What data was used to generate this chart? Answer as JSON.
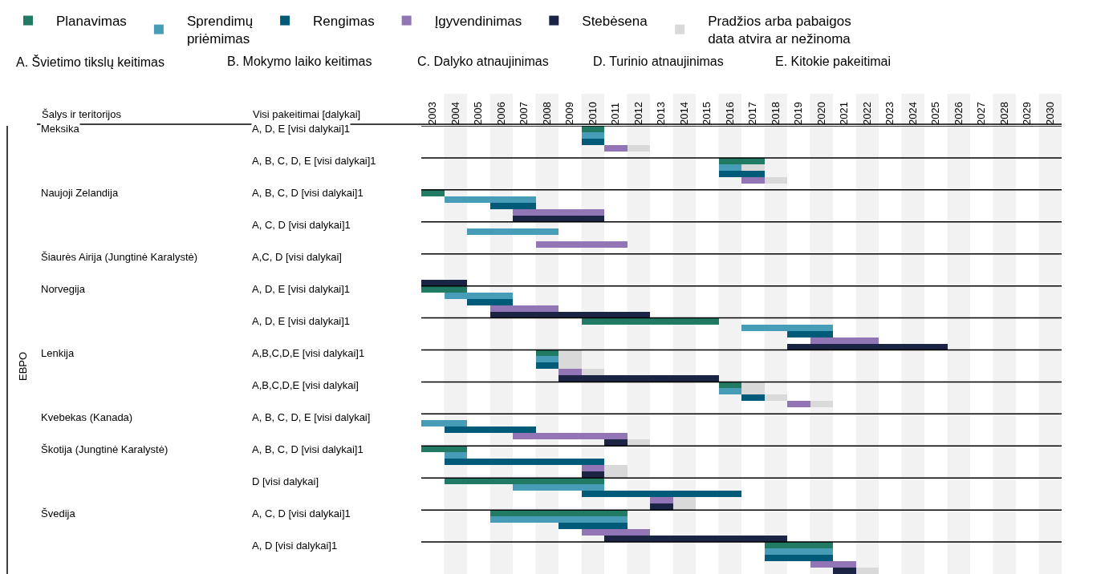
{
  "chart_data": {
    "type": "bar",
    "orientation": "horizontal",
    "legend": "top",
    "grid": false,
    "annotations": [
      "A. Švietimo tikslų keitimas",
      "B. Mokymo laiko keitimas",
      "C. Dalyko atnaujinimas",
      "D. Turinio atnaujinimas",
      "E. Kitokie pakeitimai",
      "Šalys ir teritorijos",
      "Visi pakeitimai [dalykai]",
      "EBPO"
    ],
    "xlim": [
      2003,
      2031
    ],
    "xticks": [
      {
        "value": 2003.5,
        "label": "2003"
      },
      {
        "value": 2004.5,
        "label": "2004"
      },
      {
        "value": 2005.5,
        "label": "2005"
      },
      {
        "value": 2006.5,
        "label": "2006"
      },
      {
        "value": 2007.5,
        "label": "2007"
      },
      {
        "value": 2008.5,
        "label": "2008"
      },
      {
        "value": 2009.5,
        "label": "2009"
      },
      {
        "value": 2010.5,
        "label": "2010"
      },
      {
        "value": 2011.5,
        "label": "2011"
      },
      {
        "value": 2012.5,
        "label": "2012"
      },
      {
        "value": 2013.5,
        "label": "2013"
      },
      {
        "value": 2014.5,
        "label": "2014"
      },
      {
        "value": 2015.5,
        "label": "2015"
      },
      {
        "value": 2016.5,
        "label": "2016"
      },
      {
        "value": 2017.5,
        "label": "2017"
      },
      {
        "value": 2018.5,
        "label": "2018"
      },
      {
        "value": 2019.5,
        "label": "2019"
      },
      {
        "value": 2020.5,
        "label": "2020"
      },
      {
        "value": 2021.5,
        "label": "2021"
      },
      {
        "value": 2022.5,
        "label": "2022"
      },
      {
        "value": 2023.5,
        "label": "2023"
      },
      {
        "value": 2024.5,
        "label": "2024"
      },
      {
        "value": 2025.5,
        "label": "2025"
      },
      {
        "value": 2026.5,
        "label": "2026"
      },
      {
        "value": 2027.5,
        "label": "2027"
      },
      {
        "value": 2028.5,
        "label": "2028"
      },
      {
        "value": 2029.5,
        "label": "2029"
      },
      {
        "value": 2030.5,
        "label": "2030"
      }
    ],
    "bands": [
      {
        "axis": "x",
        "from": 2004,
        "to": 2005,
        "color": "#f2f2f2"
      },
      {
        "axis": "x",
        "from": 2006,
        "to": 2007,
        "color": "#f2f2f2"
      },
      {
        "axis": "x",
        "from": 2008,
        "to": 2009,
        "color": "#f2f2f2"
      },
      {
        "axis": "x",
        "from": 2010,
        "to": 2011,
        "color": "#f2f2f2"
      },
      {
        "axis": "x",
        "from": 2012,
        "to": 2013,
        "color": "#f2f2f2"
      },
      {
        "axis": "x",
        "from": 2014,
        "to": 2015,
        "color": "#f2f2f2"
      },
      {
        "axis": "x",
        "from": 2016,
        "to": 2017,
        "color": "#f2f2f2"
      },
      {
        "axis": "x",
        "from": 2018,
        "to": 2019,
        "color": "#f2f2f2"
      },
      {
        "axis": "x",
        "from": 2020,
        "to": 2021,
        "color": "#f2f2f2"
      },
      {
        "axis": "x",
        "from": 2022,
        "to": 2023,
        "color": "#f2f2f2"
      },
      {
        "axis": "x",
        "from": 2024,
        "to": 2025,
        "color": "#f2f2f2"
      },
      {
        "axis": "x",
        "from": 2026,
        "to": 2027,
        "color": "#f2f2f2"
      },
      {
        "axis": "x",
        "from": 2028,
        "to": 2029,
        "color": "#f2f2f2"
      },
      {
        "axis": "x",
        "from": 2030,
        "to": 2031,
        "color": "#f2f2f2"
      }
    ],
    "categories": [
      "A, D, E [visi dalykai]1",
      null,
      null,
      null,
      null,
      "A, B, C, D, E [visi dalykai]1",
      null,
      null,
      null,
      null,
      "A, B, C, D [visi dalykai]1",
      null,
      null,
      null,
      null,
      "A, C, D [visi dalykai]1",
      null,
      null,
      null,
      null,
      "A,C, D [visi dalykai]",
      null,
      null,
      null,
      null,
      "A, D, E [visi dalykai]1",
      null,
      null,
      null,
      null,
      "A, D, E [visi dalykai]1",
      null,
      null,
      null,
      null,
      "A,B,C,D,E [visi dalykai]1",
      null,
      null,
      null,
      null,
      "A,B,C,D,E [visi dalykai]",
      null,
      null,
      null,
      null,
      "A, B, C, D, E [visi dalykai]",
      null,
      null,
      null,
      null,
      "A, B, C, D [visi dalykai]1",
      null,
      null,
      null,
      null,
      "D [visi dalykai]",
      null,
      null,
      null,
      null,
      "A, C, D [visi dalykai]1",
      null,
      null,
      null,
      null,
      "A, D [visi dalykai]1",
      null,
      null,
      null,
      null
    ],
    "y2_categories": [
      "Meksika",
      null,
      null,
      null,
      null,
      null,
      null,
      null,
      null,
      null,
      "Naujoji Zelandija",
      null,
      null,
      null,
      null,
      null,
      null,
      null,
      null,
      null,
      "Šiaurės Airija (Jungtinė Karalystė)",
      null,
      null,
      null,
      null,
      "Norvegija",
      null,
      null,
      null,
      null,
      null,
      null,
      null,
      null,
      null,
      "Lenkija",
      null,
      null,
      null,
      null,
      null,
      null,
      null,
      null,
      null,
      "Kvebekas (Kanada)",
      null,
      null,
      null,
      null,
      "Škotija (Jungtinė Karalystė)",
      null,
      null,
      null,
      null,
      null,
      null,
      null,
      null,
      null,
      "Švedija",
      null,
      null,
      null,
      null,
      null,
      null,
      null,
      null,
      null
    ],
    "series": [
      {
        "name": "Planavimas",
        "color": "#217a64",
        "base": [
          2010,
          null,
          null,
          null,
          null,
          2016,
          null,
          null,
          null,
          null,
          2003,
          null,
          null,
          null,
          null,
          null,
          null,
          null,
          null,
          null,
          null,
          null,
          null,
          null,
          null,
          2003,
          null,
          null,
          null,
          null,
          2010,
          null,
          null,
          null,
          null,
          2008,
          null,
          null,
          null,
          null,
          2016,
          null,
          null,
          null,
          null,
          null,
          null,
          null,
          null,
          null,
          2003,
          null,
          null,
          null,
          null,
          2004,
          null,
          null,
          null,
          null,
          2006,
          null,
          null,
          null,
          null,
          2018,
          null,
          null,
          null,
          null
        ],
        "values": [
          1,
          null,
          null,
          null,
          null,
          2,
          null,
          null,
          null,
          null,
          1,
          null,
          null,
          null,
          null,
          null,
          null,
          null,
          null,
          null,
          null,
          null,
          null,
          null,
          null,
          2,
          null,
          null,
          null,
          null,
          6,
          null,
          null,
          null,
          null,
          1,
          null,
          null,
          null,
          null,
          1,
          null,
          null,
          null,
          null,
          null,
          null,
          null,
          null,
          null,
          2,
          null,
          null,
          null,
          null,
          7,
          null,
          null,
          null,
          null,
          6,
          null,
          null,
          null,
          null,
          3,
          null,
          null,
          null,
          null
        ]
      },
      {
        "name": "Sprendimų priėmimas",
        "color": "#479db7",
        "base": [
          null,
          2010,
          null,
          null,
          null,
          null,
          2016,
          null,
          null,
          null,
          null,
          2004,
          null,
          null,
          null,
          null,
          2005,
          null,
          null,
          null,
          null,
          null,
          null,
          null,
          null,
          null,
          2004,
          null,
          null,
          null,
          null,
          2017,
          null,
          null,
          null,
          null,
          2008,
          null,
          null,
          null,
          null,
          2016,
          null,
          null,
          null,
          null,
          2003,
          null,
          null,
          null,
          null,
          2004,
          null,
          null,
          null,
          null,
          2007,
          null,
          null,
          null,
          null,
          2006,
          null,
          null,
          null,
          null,
          2018,
          null,
          null,
          null
        ],
        "values": [
          null,
          1,
          null,
          null,
          null,
          null,
          1,
          null,
          null,
          null,
          null,
          4,
          null,
          null,
          null,
          null,
          4,
          null,
          null,
          null,
          null,
          null,
          null,
          null,
          null,
          null,
          3,
          null,
          null,
          null,
          null,
          4,
          null,
          null,
          null,
          null,
          1,
          null,
          null,
          null,
          null,
          1,
          null,
          null,
          null,
          null,
          2,
          null,
          null,
          null,
          null,
          1,
          null,
          null,
          null,
          null,
          4,
          null,
          null,
          null,
          null,
          6,
          null,
          null,
          null,
          null,
          3,
          null,
          null,
          null
        ]
      },
      {
        "name": "Rengimas",
        "color": "#005a78",
        "base": [
          null,
          null,
          2010,
          null,
          null,
          null,
          null,
          2016,
          null,
          null,
          null,
          null,
          2006,
          null,
          null,
          null,
          null,
          null,
          null,
          null,
          null,
          null,
          null,
          null,
          null,
          null,
          null,
          2005,
          null,
          null,
          null,
          null,
          2019,
          null,
          null,
          null,
          null,
          2008,
          null,
          null,
          null,
          null,
          2017,
          null,
          null,
          null,
          null,
          2004,
          null,
          null,
          null,
          null,
          2004,
          null,
          null,
          null,
          null,
          2010,
          null,
          null,
          null,
          null,
          2009,
          null,
          null,
          null,
          null,
          2018,
          null,
          null
        ],
        "values": [
          null,
          null,
          1,
          null,
          null,
          null,
          null,
          2,
          null,
          null,
          null,
          null,
          2,
          null,
          null,
          null,
          null,
          null,
          null,
          null,
          null,
          null,
          null,
          null,
          null,
          null,
          null,
          2,
          null,
          null,
          null,
          null,
          2,
          null,
          null,
          null,
          null,
          1,
          null,
          null,
          null,
          null,
          1,
          null,
          null,
          null,
          null,
          4,
          null,
          null,
          null,
          null,
          7,
          null,
          null,
          null,
          null,
          7,
          null,
          null,
          null,
          null,
          3,
          null,
          null,
          null,
          null,
          3,
          null,
          null
        ]
      },
      {
        "name": "Įgyvendinimas",
        "color": "#9175b5",
        "base": [
          null,
          null,
          null,
          2011,
          null,
          null,
          null,
          null,
          2017,
          null,
          null,
          null,
          null,
          2007,
          null,
          null,
          null,
          null,
          2008,
          null,
          null,
          null,
          null,
          null,
          null,
          null,
          null,
          null,
          2006,
          null,
          null,
          null,
          null,
          2020,
          null,
          null,
          null,
          null,
          2009,
          null,
          null,
          null,
          null,
          2019,
          null,
          null,
          null,
          null,
          2007,
          null,
          null,
          null,
          null,
          2010,
          null,
          null,
          null,
          null,
          2013,
          null,
          null,
          null,
          null,
          2010,
          null,
          null,
          null,
          null,
          2020,
          null
        ],
        "values": [
          null,
          null,
          null,
          1,
          null,
          null,
          null,
          null,
          1,
          null,
          null,
          null,
          null,
          4,
          null,
          null,
          null,
          null,
          4,
          null,
          null,
          null,
          null,
          null,
          null,
          null,
          null,
          null,
          3,
          null,
          null,
          null,
          null,
          3,
          null,
          null,
          null,
          null,
          1,
          null,
          null,
          null,
          null,
          1,
          null,
          null,
          null,
          null,
          5,
          null,
          null,
          null,
          null,
          1,
          null,
          null,
          null,
          null,
          1,
          null,
          null,
          null,
          null,
          3,
          null,
          null,
          null,
          null,
          2,
          null
        ]
      },
      {
        "name": "Stebėsena",
        "color": "#1b2444",
        "base": [
          null,
          null,
          null,
          null,
          null,
          null,
          null,
          null,
          null,
          null,
          null,
          null,
          null,
          null,
          2007,
          null,
          null,
          null,
          null,
          null,
          null,
          null,
          null,
          null,
          2003,
          null,
          null,
          null,
          null,
          2006,
          null,
          null,
          null,
          null,
          2019,
          null,
          null,
          null,
          null,
          2009,
          null,
          null,
          null,
          null,
          null,
          null,
          null,
          null,
          null,
          2011,
          null,
          null,
          null,
          null,
          2010,
          null,
          null,
          null,
          null,
          2013,
          null,
          null,
          null,
          null,
          2011,
          null,
          null,
          null,
          null,
          2021
        ],
        "values": [
          null,
          null,
          null,
          null,
          null,
          null,
          null,
          null,
          null,
          null,
          null,
          null,
          null,
          null,
          4,
          null,
          null,
          null,
          null,
          null,
          null,
          null,
          null,
          null,
          2,
          null,
          null,
          null,
          null,
          7,
          null,
          null,
          null,
          null,
          7,
          null,
          null,
          null,
          null,
          7,
          null,
          null,
          null,
          null,
          null,
          null,
          null,
          null,
          null,
          1,
          null,
          null,
          null,
          null,
          1,
          null,
          null,
          null,
          null,
          1,
          null,
          null,
          null,
          null,
          8,
          null,
          null,
          null,
          null,
          1
        ]
      },
      {
        "name": "Pradžios arba pabaigos data atvira ar nežinoma",
        "color": "#d9d9d9",
        "base": [
          null,
          null,
          null,
          2012,
          null,
          null,
          2017,
          null,
          2018,
          null,
          null,
          null,
          null,
          null,
          null,
          null,
          null,
          null,
          null,
          null,
          null,
          null,
          null,
          null,
          null,
          null,
          null,
          null,
          null,
          null,
          null,
          null,
          null,
          null,
          null,
          2009,
          2009,
          2009,
          2010,
          null,
          2017,
          2017,
          2018,
          2020,
          null,
          null,
          null,
          null,
          null,
          2012,
          null,
          null,
          null,
          2011,
          2011,
          null,
          null,
          null,
          2014,
          2014,
          null,
          null,
          null,
          null,
          null,
          null,
          null,
          null,
          null,
          2022
        ],
        "values": [
          null,
          null,
          null,
          1,
          null,
          null,
          1,
          null,
          1,
          null,
          null,
          null,
          null,
          null,
          null,
          null,
          null,
          null,
          null,
          null,
          null,
          null,
          null,
          null,
          null,
          null,
          null,
          null,
          null,
          null,
          null,
          null,
          null,
          null,
          null,
          1,
          1,
          1,
          1,
          null,
          1,
          1,
          1,
          1,
          null,
          null,
          null,
          null,
          null,
          1,
          null,
          null,
          null,
          1,
          1,
          null,
          null,
          null,
          1,
          1,
          null,
          null,
          null,
          null,
          null,
          null,
          null,
          null,
          null,
          1
        ]
      }
    ]
  }
}
